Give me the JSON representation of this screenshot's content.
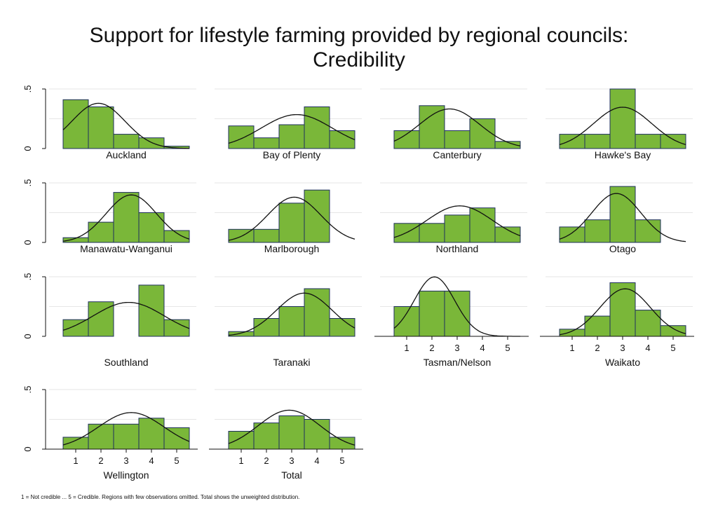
{
  "title_lines": [
    "Support for lifestyle farming provided by regional councils:",
    "Credibility"
  ],
  "footnote": "1 = Not credible ... 5 = Credible. Regions with few observations omitted. Total shows the unweighted distribution.",
  "colors": {
    "bar": "#7ab739",
    "bar_stroke": "#1f2f5f",
    "curve": "#111111",
    "grid": "#e6e6e6"
  },
  "chart_data": {
    "type": "bar",
    "subtype": "histogram small multiples with normal density overlay",
    "x_categories": [
      1,
      2,
      3,
      4,
      5
    ],
    "x_tick_labels": [
      "1",
      "2",
      "3",
      "4",
      "5"
    ],
    "ylim": [
      0,
      0.5
    ],
    "y_ticks": [
      0,
      0.5
    ],
    "y_tick_labels": [
      "0",
      ".5"
    ],
    "grid": true,
    "panels": [
      {
        "name": "Auckland",
        "values": [
          0.41,
          0.35,
          0.12,
          0.09,
          0.02
        ],
        "curve_mean": 1.9,
        "curve_sd": 1.05
      },
      {
        "name": "Bay of Plenty",
        "values": [
          0.19,
          0.09,
          0.2,
          0.35,
          0.15
        ],
        "curve_mean": 3.2,
        "curve_sd": 1.4
      },
      {
        "name": "Canterbury",
        "values": [
          0.15,
          0.36,
          0.15,
          0.25,
          0.06
        ],
        "curve_mean": 2.7,
        "curve_sd": 1.2
      },
      {
        "name": "Hawke's Bay",
        "values": [
          0.12,
          0.12,
          0.5,
          0.12,
          0.12
        ],
        "curve_mean": 3.0,
        "curve_sd": 1.15
      },
      {
        "name": "Manawatu-Wanganui",
        "values": [
          0.04,
          0.17,
          0.42,
          0.25,
          0.1
        ],
        "curve_mean": 3.2,
        "curve_sd": 1.0
      },
      {
        "name": "Marlborough",
        "values": [
          0.11,
          0.11,
          0.33,
          0.44,
          0.0
        ],
        "curve_mean": 3.1,
        "curve_sd": 1.05
      },
      {
        "name": "Northland",
        "values": [
          0.16,
          0.16,
          0.23,
          0.29,
          0.13
        ],
        "curve_mean": 3.1,
        "curve_sd": 1.3
      },
      {
        "name": "Otago",
        "values": [
          0.13,
          0.19,
          0.47,
          0.19,
          0.0
        ],
        "curve_mean": 2.75,
        "curve_sd": 0.97
      },
      {
        "name": "Southland",
        "values": [
          0.14,
          0.29,
          0.0,
          0.43,
          0.14
        ],
        "curve_mean": 3.1,
        "curve_sd": 1.4
      },
      {
        "name": "Taranaki",
        "values": [
          0.04,
          0.15,
          0.25,
          0.4,
          0.15
        ],
        "curve_mean": 3.5,
        "curve_sd": 1.1
      },
      {
        "name": "Tasman/Nelson",
        "values": [
          0.25,
          0.38,
          0.38,
          0.0,
          0.0
        ],
        "curve_mean": 2.1,
        "curve_sd": 0.8
      },
      {
        "name": "Waikato",
        "values": [
          0.06,
          0.17,
          0.45,
          0.22,
          0.09
        ],
        "curve_mean": 3.1,
        "curve_sd": 1.0
      },
      {
        "name": "Wellington",
        "values": [
          0.1,
          0.21,
          0.21,
          0.26,
          0.18
        ],
        "curve_mean": 3.2,
        "curve_sd": 1.3
      },
      {
        "name": "Total",
        "values": [
          0.15,
          0.22,
          0.28,
          0.25,
          0.1
        ],
        "curve_mean": 2.9,
        "curve_sd": 1.22
      }
    ]
  }
}
